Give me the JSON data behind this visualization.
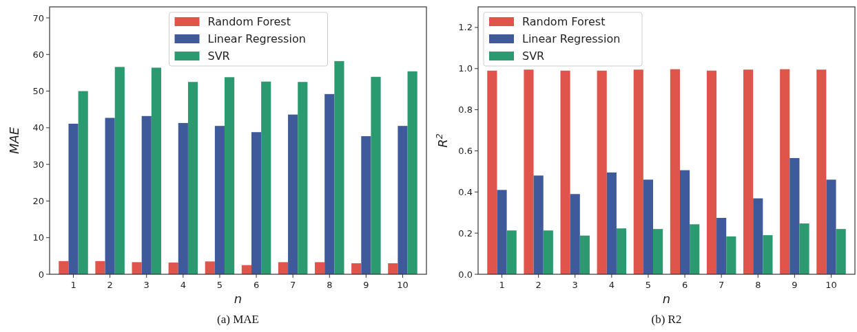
{
  "chart_data": [
    {
      "type": "bar",
      "title": "(a) MAE",
      "xlabel": "n",
      "ylabel": "MAE",
      "categories": [
        "1",
        "2",
        "3",
        "4",
        "5",
        "6",
        "7",
        "8",
        "9",
        "10"
      ],
      "series": [
        {
          "name": "Random Forest",
          "color": "#e0554b",
          "values": [
            3.6,
            3.6,
            3.3,
            3.2,
            3.5,
            2.5,
            3.3,
            3.3,
            3.0,
            3.0
          ]
        },
        {
          "name": "Linear Regression",
          "color": "#3f5a9a",
          "values": [
            41.1,
            42.7,
            43.2,
            41.3,
            40.5,
            38.8,
            43.6,
            49.2,
            37.7,
            40.5
          ]
        },
        {
          "name": "SVR",
          "color": "#2b9a70",
          "values": [
            50.0,
            56.6,
            56.4,
            52.5,
            53.8,
            52.6,
            52.5,
            58.2,
            53.9,
            55.4
          ]
        }
      ],
      "ylim": [
        0,
        73
      ],
      "yticks": [
        0,
        10,
        20,
        30,
        40,
        50,
        60,
        70
      ],
      "legend": "top",
      "grid": false
    },
    {
      "type": "bar",
      "title": "(b) R2",
      "xlabel": "n",
      "ylabel": "R$^{2}$",
      "categories": [
        "1",
        "2",
        "3",
        "4",
        "5",
        "6",
        "7",
        "8",
        "9",
        "10"
      ],
      "series": [
        {
          "name": "Random Forest",
          "color": "#e0554b",
          "values": [
            0.99,
            0.995,
            0.99,
            0.99,
            0.995,
            0.997,
            0.99,
            0.995,
            0.997,
            0.995
          ]
        },
        {
          "name": "Linear Regression",
          "color": "#3f5a9a",
          "values": [
            0.41,
            0.48,
            0.39,
            0.495,
            0.46,
            0.506,
            0.274,
            0.369,
            0.565,
            0.46
          ]
        },
        {
          "name": "SVR",
          "color": "#2b9a70",
          "values": [
            0.213,
            0.213,
            0.188,
            0.223,
            0.22,
            0.243,
            0.184,
            0.19,
            0.247,
            0.22
          ]
        }
      ],
      "ylim": [
        0,
        1.3
      ],
      "yticks": [
        {
          "value": 0,
          "label": "0.0"
        },
        0.2,
        0.4,
        0.6,
        0.8,
        {
          "value": 1,
          "label": "1.0"
        },
        1.2
      ],
      "legend": "top left",
      "grid": false
    }
  ]
}
